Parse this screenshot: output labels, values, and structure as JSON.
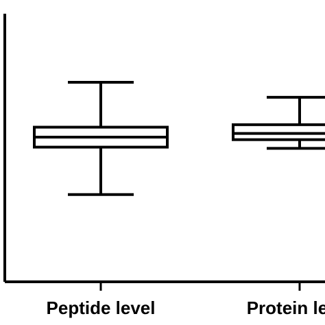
{
  "chart_data": {
    "type": "box",
    "categories": [
      "Peptide level",
      "Protein level"
    ],
    "series": [
      {
        "values": [
          {
            "category": "Peptide level",
            "min": 2.4,
            "q1": 6.2,
            "median": 7.0,
            "q3": 7.8,
            "max": 11.4
          },
          {
            "category": "Protein level",
            "min": 6.1,
            "q1": 6.8,
            "median": 7.3,
            "q3": 8.0,
            "max": 10.2
          }
        ]
      }
    ],
    "ylim": [
      -4.6,
      18
    ],
    "title": "",
    "xlabel": "",
    "ylabel": "",
    "grid": false,
    "legend": "none"
  },
  "colors": {
    "stroke": "#000000",
    "background": "#ffffff"
  }
}
